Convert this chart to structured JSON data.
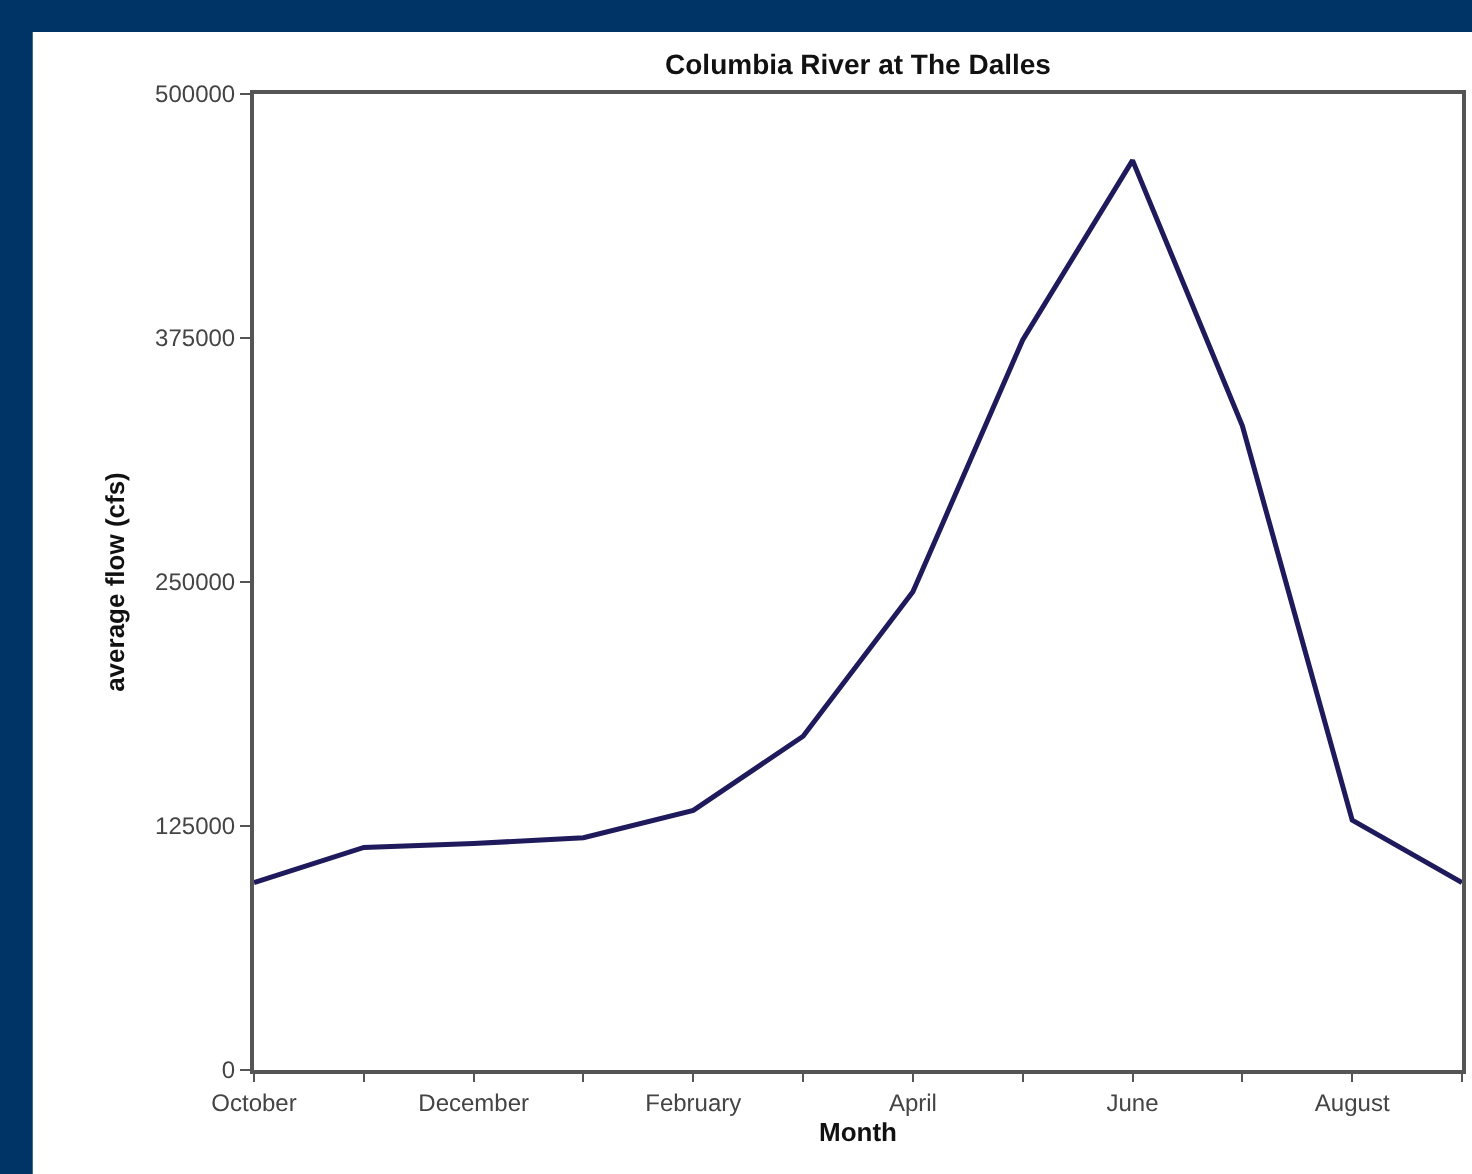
{
  "chart_data": {
    "type": "line",
    "title": "Columbia River at The Dalles",
    "xlabel": "Month",
    "ylabel": "average flow (cfs)",
    "categories": [
      "October",
      null,
      "December",
      null,
      "February",
      null,
      "April",
      null,
      "June",
      null,
      "August",
      null
    ],
    "series": [
      {
        "color": "#1f1a5c",
        "values": [
          96000,
          114000,
          116000,
          119000,
          133000,
          171000,
          245000,
          374000,
          466000,
          330000,
          128000,
          96000
        ]
      }
    ],
    "ylim": [
      0,
      500000
    ],
    "yticks": [
      0,
      125000,
      250000,
      375000,
      500000
    ],
    "marker": "none",
    "line_style": "solid"
  }
}
